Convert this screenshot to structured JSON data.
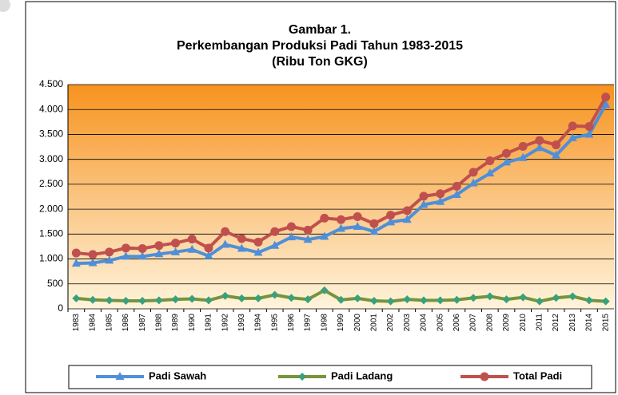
{
  "chart_data": {
    "type": "line",
    "title": [
      "Gambar 1.",
      "Perkembangan Produksi Padi Tahun 1983-2015",
      "(Ribu Ton GKG)"
    ],
    "categories": [
      "1983",
      "1984",
      "1985",
      "1986",
      "1987",
      "1988",
      "1989",
      "1990",
      "1991",
      "1992",
      "1993",
      "1994",
      "1995",
      "1996",
      "1997",
      "1998",
      "1999",
      "2000",
      "2001",
      "2002",
      "2003",
      "2004",
      "2005",
      "2006",
      "2007",
      "2008",
      "2009",
      "2010",
      "2011",
      "2012",
      "2013",
      "2014",
      "2015"
    ],
    "series": [
      {
        "name": "Padi Sawah",
        "color": "#4f8fd8",
        "marker": "triangle",
        "values": [
          910,
          920,
          970,
          1050,
          1050,
          1100,
          1140,
          1190,
          1060,
          1290,
          1210,
          1130,
          1270,
          1440,
          1390,
          1450,
          1610,
          1650,
          1550,
          1740,
          1790,
          2090,
          2150,
          2290,
          2520,
          2720,
          2940,
          3030,
          3230,
          3080,
          3430,
          3500,
          4100
        ]
      },
      {
        "name": "Padi Ladang",
        "color": "#77933c",
        "marker": "diamond",
        "values": [
          210,
          180,
          170,
          160,
          160,
          170,
          190,
          200,
          170,
          260,
          210,
          210,
          280,
          220,
          190,
          370,
          180,
          210,
          160,
          150,
          190,
          170,
          170,
          180,
          220,
          250,
          190,
          230,
          150,
          220,
          250,
          170,
          150
        ]
      },
      {
        "name": "Total Padi",
        "color": "#c0504d",
        "marker": "circle",
        "values": [
          1120,
          1090,
          1140,
          1220,
          1210,
          1270,
          1320,
          1400,
          1220,
          1550,
          1410,
          1340,
          1550,
          1650,
          1580,
          1820,
          1790,
          1850,
          1710,
          1880,
          1970,
          2260,
          2310,
          2460,
          2740,
          2970,
          3120,
          3260,
          3380,
          3290,
          3670,
          3660,
          4250
        ]
      }
    ],
    "ylim": [
      0,
      4500
    ],
    "yticks": [
      0,
      500,
      {
        "value": 1000,
        "label": "1.000"
      },
      {
        "value": 1500,
        "label": "1.500"
      },
      {
        "value": 2000,
        "label": "2.000"
      },
      {
        "value": 2500,
        "label": "2.500"
      },
      {
        "value": 3000,
        "label": "3.000"
      },
      {
        "value": 3500,
        "label": "3.500"
      },
      {
        "value": 4000,
        "label": "4.000"
      },
      {
        "value": 4500,
        "label": "4.500"
      }
    ],
    "grid": true,
    "legend": "bottom"
  }
}
